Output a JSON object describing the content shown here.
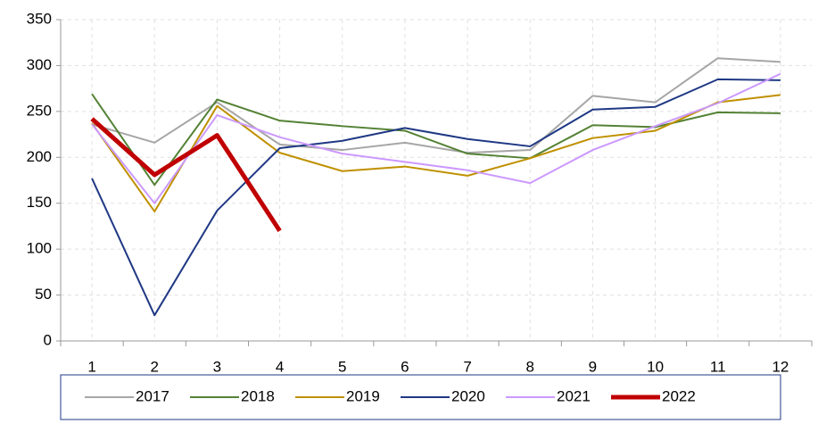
{
  "chart_data": {
    "type": "line",
    "categories": [
      "1",
      "2",
      "3",
      "4",
      "5",
      "6",
      "7",
      "8",
      "9",
      "10",
      "11",
      "12"
    ],
    "series": [
      {
        "name": "2017",
        "color": "#a6a6a6",
        "width": 2,
        "values": [
          236,
          216,
          260,
          214,
          208,
          216,
          205,
          208,
          267,
          260,
          308,
          304
        ]
      },
      {
        "name": "2018",
        "color": "#548235",
        "width": 2,
        "values": [
          269,
          170,
          263,
          240,
          234,
          229,
          204,
          199,
          235,
          233,
          249,
          248
        ]
      },
      {
        "name": "2019",
        "color": "#bf9000",
        "width": 2,
        "values": [
          237,
          141,
          256,
          205,
          185,
          190,
          180,
          199,
          221,
          229,
          260,
          268
        ]
      },
      {
        "name": "2020",
        "color": "#1f3884",
        "width": 2,
        "values": [
          177,
          28,
          142,
          210,
          218,
          232,
          220,
          212,
          252,
          255,
          285,
          284
        ]
      },
      {
        "name": "2021",
        "color": "#cc99ff",
        "width": 2,
        "values": [
          236,
          150,
          246,
          222,
          204,
          195,
          186,
          172,
          208,
          234,
          259,
          291
        ]
      },
      {
        "name": "2022",
        "color": "#c00000",
        "width": 5,
        "values": [
          242,
          181,
          224,
          120,
          null,
          null,
          null,
          null,
          null,
          null,
          null,
          null
        ]
      }
    ],
    "ylim": [
      0,
      350
    ],
    "yticks": [
      0,
      50,
      100,
      150,
      200,
      250,
      300,
      350
    ],
    "grid": true,
    "legend": "bottom"
  }
}
